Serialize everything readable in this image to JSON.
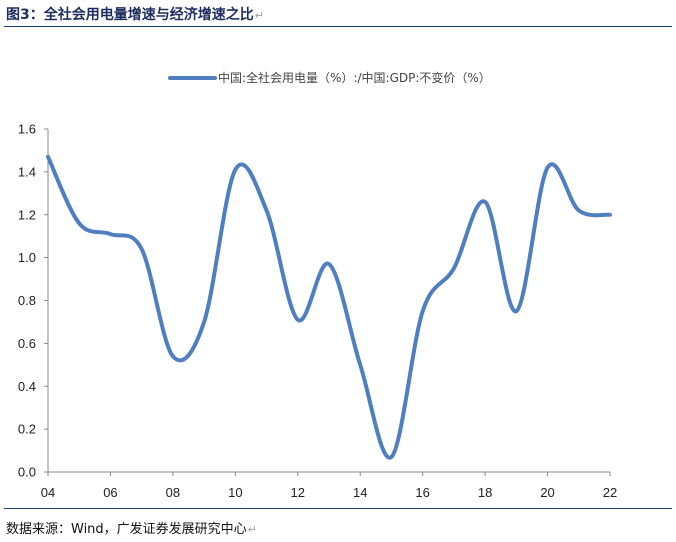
{
  "figure": {
    "title": "图3：全社会用电量增速与经济增速之比",
    "title_mark": "↵",
    "source": "数据来源：Wind，广发证券发展研究中心",
    "source_mark": "↵"
  },
  "chart_data": {
    "type": "line",
    "title": "",
    "xlabel": "",
    "ylabel": "",
    "x_tick_labels": [
      "04",
      "06",
      "08",
      "10",
      "12",
      "14",
      "16",
      "18",
      "20",
      "22"
    ],
    "y_tick_labels": [
      "0.0",
      "0.2",
      "0.4",
      "0.6",
      "0.8",
      "1.0",
      "1.2",
      "1.4",
      "1.6"
    ],
    "ylim": [
      0,
      1.6
    ],
    "xlim": [
      2004,
      2022
    ],
    "grid": false,
    "legend_position": "top-center",
    "line_color": "#4f7fc0",
    "series": [
      {
        "name": "中国:全社会用电量（%）:/中国:GDP:不变价（%）",
        "x": [
          2004,
          2005,
          2006,
          2007,
          2008,
          2009,
          2010,
          2011,
          2012,
          2013,
          2014,
          2015,
          2016,
          2017,
          2018,
          2019,
          2020,
          2021,
          2022
        ],
        "values": [
          1.47,
          1.16,
          1.11,
          1.04,
          0.54,
          0.7,
          1.41,
          1.22,
          0.71,
          0.97,
          0.5,
          0.07,
          0.75,
          0.95,
          1.26,
          0.75,
          1.42,
          1.22,
          1.2
        ]
      }
    ]
  }
}
